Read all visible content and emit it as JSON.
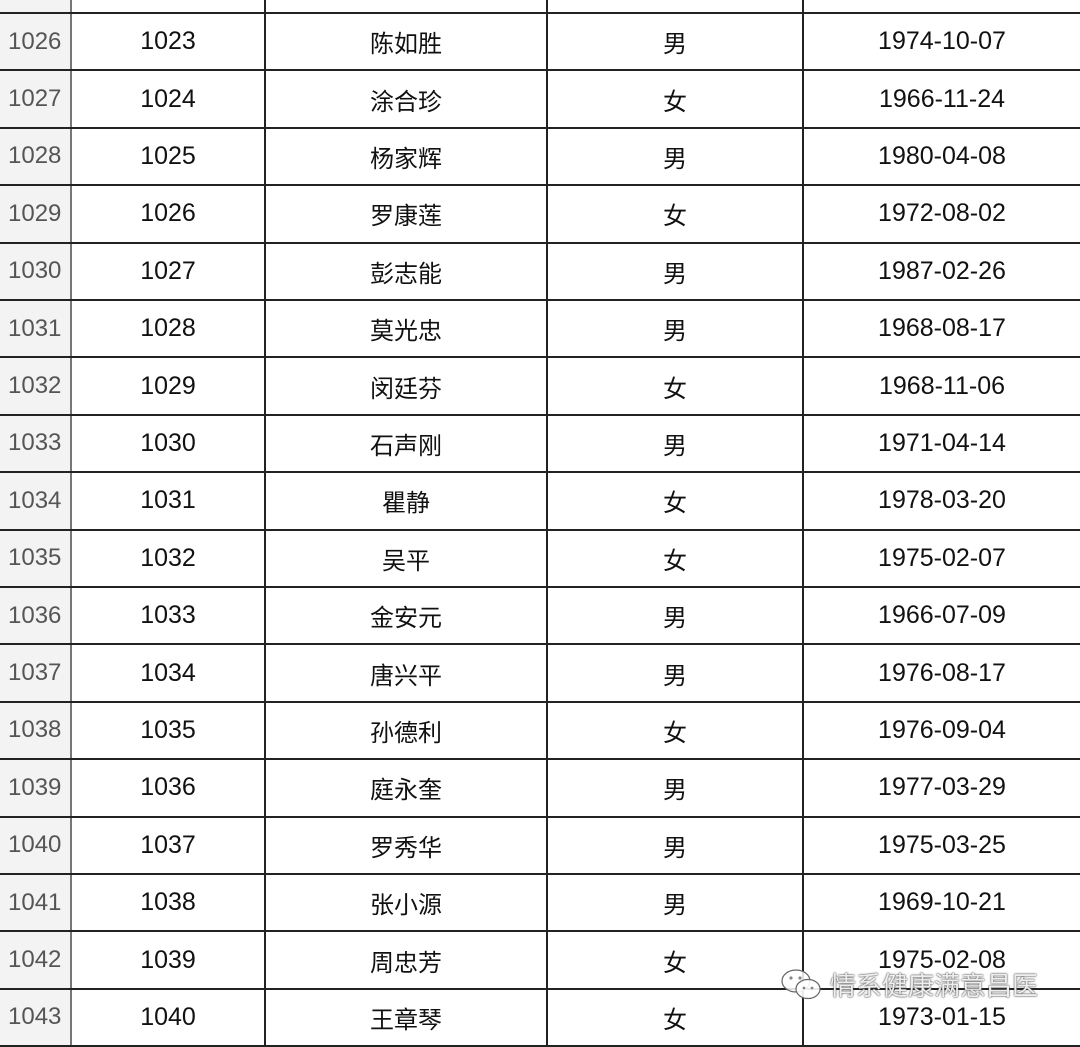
{
  "rows": [
    {
      "row": "1026",
      "id": "1023",
      "name": "陈如胜",
      "gender": "男",
      "birth": "1974-10-07"
    },
    {
      "row": "1027",
      "id": "1024",
      "name": "涂合珍",
      "gender": "女",
      "birth": "1966-11-24"
    },
    {
      "row": "1028",
      "id": "1025",
      "name": "杨家辉",
      "gender": "男",
      "birth": "1980-04-08"
    },
    {
      "row": "1029",
      "id": "1026",
      "name": "罗康莲",
      "gender": "女",
      "birth": "1972-08-02"
    },
    {
      "row": "1030",
      "id": "1027",
      "name": "彭志能",
      "gender": "男",
      "birth": "1987-02-26"
    },
    {
      "row": "1031",
      "id": "1028",
      "name": "莫光忠",
      "gender": "男",
      "birth": "1968-08-17"
    },
    {
      "row": "1032",
      "id": "1029",
      "name": "闵廷芬",
      "gender": "女",
      "birth": "1968-11-06"
    },
    {
      "row": "1033",
      "id": "1030",
      "name": "石声刚",
      "gender": "男",
      "birth": "1971-04-14"
    },
    {
      "row": "1034",
      "id": "1031",
      "name": "瞿静",
      "gender": "女",
      "birth": "1978-03-20"
    },
    {
      "row": "1035",
      "id": "1032",
      "name": "吴平",
      "gender": "女",
      "birth": "1975-02-07"
    },
    {
      "row": "1036",
      "id": "1033",
      "name": "金安元",
      "gender": "男",
      "birth": "1966-07-09"
    },
    {
      "row": "1037",
      "id": "1034",
      "name": "唐兴平",
      "gender": "男",
      "birth": "1976-08-17"
    },
    {
      "row": "1038",
      "id": "1035",
      "name": "孙德利",
      "gender": "女",
      "birth": "1976-09-04"
    },
    {
      "row": "1039",
      "id": "1036",
      "name": "庭永奎",
      "gender": "男",
      "birth": "1977-03-29"
    },
    {
      "row": "1040",
      "id": "1037",
      "name": "罗秀华",
      "gender": "男",
      "birth": "1975-03-25"
    },
    {
      "row": "1041",
      "id": "1038",
      "name": "张小源",
      "gender": "男",
      "birth": "1969-10-21"
    },
    {
      "row": "1042",
      "id": "1039",
      "name": "周忠芳",
      "gender": "女",
      "birth": "1975-02-08"
    },
    {
      "row": "1043",
      "id": "1040",
      "name": "王章琴",
      "gender": "女",
      "birth": "1973-01-15"
    }
  ],
  "watermark": {
    "text": "情系健康满意昌医",
    "icon": "wechat-icon"
  }
}
